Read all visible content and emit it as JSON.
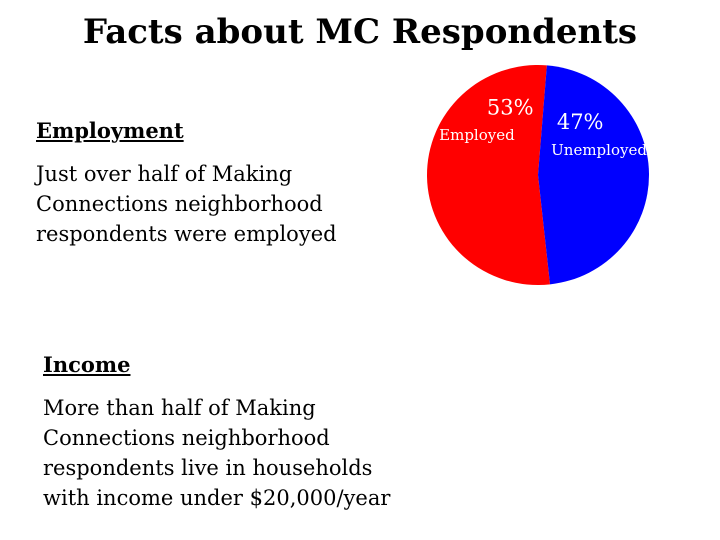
{
  "title": "Facts about MC Respondents",
  "employment": {
    "heading": "Employment",
    "text": "Just over half of Making\nConnections neighborhood\nrespondents were employed"
  },
  "income": {
    "heading": "Income",
    "text": "More than half of Making\nConnections neighborhood\nrespondents live in households\nwith income under $20,000/year"
  },
  "chart_data": {
    "type": "pie",
    "slices": [
      {
        "label": "Employed",
        "value": 53,
        "value_label": "53%",
        "color": "#ff0000"
      },
      {
        "label": "Unemployed",
        "value": 47,
        "value_label": "47%",
        "color": "#0000ff"
      }
    ]
  }
}
